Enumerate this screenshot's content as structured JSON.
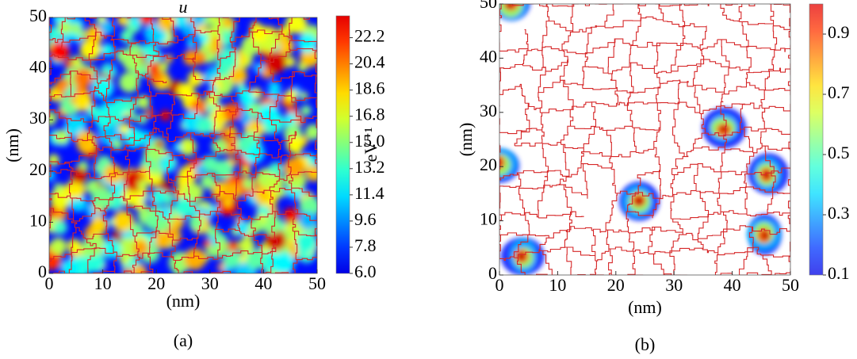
{
  "chart_data": [
    {
      "type": "heatmap",
      "title": "u",
      "xlabel": "(nm)",
      "ylabel": "(nm)",
      "caption": "(a)",
      "xlim": [
        0,
        50
      ],
      "ylim": [
        0,
        50
      ],
      "xticks": [
        0,
        10,
        20,
        30,
        40,
        50
      ],
      "yticks": [
        0,
        10,
        20,
        30,
        40,
        50
      ],
      "colormap": "jet",
      "colorbar_label": "eV⁻¹",
      "clim": [
        6.0,
        23.7
      ],
      "cticks": [
        {
          "value": 6.0,
          "label": "6.0"
        },
        7.8,
        9.6,
        11.4,
        13.2,
        {
          "value": 15.0,
          "label": "15.0"
        },
        16.8,
        18.6,
        20.4,
        22.2
      ],
      "boundary_color": "#d62728"
    },
    {
      "type": "heatmap",
      "xlabel": "(nm)",
      "ylabel": "(nm)",
      "caption": "(b)",
      "xlim": [
        0,
        50
      ],
      "ylim": [
        0,
        50
      ],
      "xticks": [
        0,
        10,
        20,
        30,
        40,
        50
      ],
      "yticks": [
        0,
        10,
        20,
        30,
        40,
        50
      ],
      "colormap": "jet",
      "clim": [
        0.1,
        1.0
      ],
      "cticks": [
        0.1,
        0.3,
        0.5,
        0.7,
        0.9
      ],
      "boundary_color": "#d62728"
    }
  ]
}
